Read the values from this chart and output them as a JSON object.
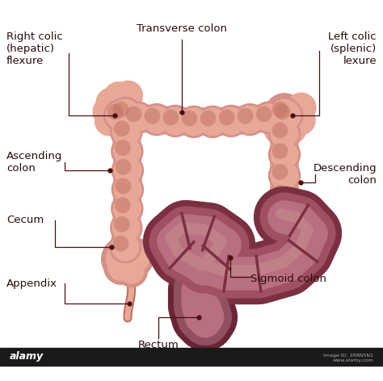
{
  "bg_color": "#ffffff",
  "label_color": "#2a0a0a",
  "line_color": "#4a1010",
  "colon_outer": "#e8a898",
  "colon_inner": "#f5d0c8",
  "colon_highlight": "#fae8e4",
  "colon_shadow": "#d49088",
  "colon_edge": "#c07060",
  "sigmoid_outer": "#7a3040",
  "sigmoid_fill": "#a05060",
  "sigmoid_light": "#b87080",
  "sigmoid_highlight": "#c89090",
  "rectum_fill": "#905060",
  "rectum_outer": "#6a2535",
  "figsize": [
    4.74,
    4.72
  ],
  "dpi": 100,
  "labels": {
    "right_colic": "Right colic\n(hepatic)\nflexure",
    "transverse": "Transverse colon",
    "left_colic": "Left colic\n(splenic)\nlexure",
    "ascending": "Ascending\ncolon",
    "descending": "Descending\ncolon",
    "cecum": "Cecum",
    "appendix": "Appendix",
    "rectum": "Rectum",
    "sigmoid": "Sigmoid colon"
  }
}
